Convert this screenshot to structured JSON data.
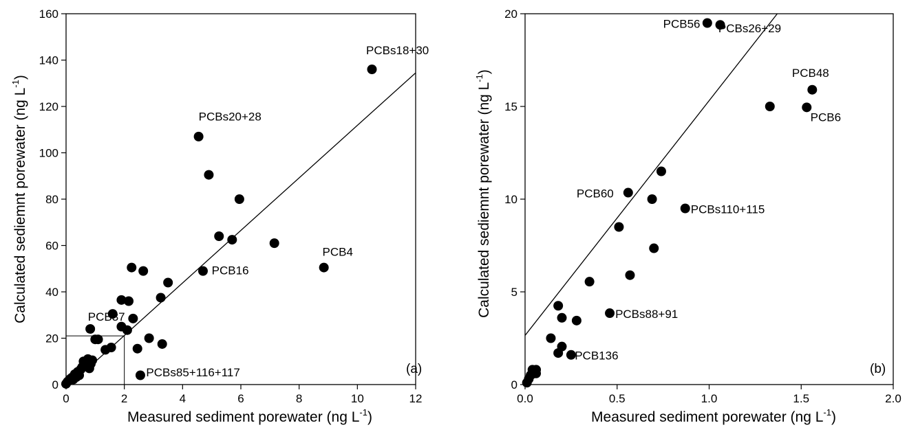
{
  "chart_data": [
    {
      "type": "scatter",
      "panel_label": "(a)",
      "xlabel": "Measured sediment porewater (ng L",
      "ylabel": "Calculated sediemnt porewater (ng L",
      "unit_exponent": "-1",
      "xlim": [
        0,
        12
      ],
      "ylim": [
        0,
        160
      ],
      "xticks": [
        0,
        2,
        4,
        6,
        8,
        10,
        12
      ],
      "yticks": [
        0,
        20,
        40,
        60,
        80,
        100,
        120,
        140,
        160
      ],
      "grid": false,
      "regression_line": [
        [
          0,
          -1.5
        ],
        [
          12,
          134.5
        ]
      ],
      "inset_box": {
        "x": [
          0,
          2
        ],
        "y": [
          0,
          21
        ]
      },
      "points": [
        [
          0.0,
          0.3
        ],
        [
          0.05,
          1.2
        ],
        [
          0.1,
          1.8
        ],
        [
          0.15,
          2.5
        ],
        [
          0.2,
          3.0
        ],
        [
          0.25,
          2.2
        ],
        [
          0.3,
          4.5
        ],
        [
          0.35,
          3.2
        ],
        [
          0.4,
          5.5
        ],
        [
          0.45,
          4.0
        ],
        [
          0.5,
          6.5
        ],
        [
          0.55,
          7.5
        ],
        [
          0.6,
          10.0
        ],
        [
          0.65,
          8.0
        ],
        [
          0.7,
          9.5
        ],
        [
          0.75,
          11.0
        ],
        [
          0.8,
          7.0
        ],
        [
          0.85,
          9.0
        ],
        [
          0.9,
          10.5
        ],
        [
          1.0,
          19.5
        ],
        [
          1.1,
          19.5
        ],
        [
          0.83,
          24.0
        ],
        [
          1.35,
          15.0
        ],
        [
          1.55,
          16.0
        ],
        [
          1.6,
          30.5
        ],
        [
          1.9,
          25.0
        ],
        [
          1.9,
          36.5
        ],
        [
          2.1,
          23.5
        ],
        [
          2.15,
          36.0
        ],
        [
          2.25,
          50.5
        ],
        [
          2.3,
          28.5
        ],
        [
          2.45,
          15.5
        ],
        [
          2.55,
          4.0
        ],
        [
          2.65,
          49.0
        ],
        [
          2.85,
          20.0
        ],
        [
          3.25,
          37.5
        ],
        [
          3.3,
          17.5
        ],
        [
          3.5,
          44.0
        ],
        [
          4.55,
          107.0
        ],
        [
          4.7,
          49.0
        ],
        [
          4.9,
          90.5
        ],
        [
          5.25,
          64.0
        ],
        [
          5.7,
          62.5
        ],
        [
          5.95,
          80.0
        ],
        [
          7.15,
          61.0
        ],
        [
          8.85,
          50.5
        ],
        [
          10.5,
          136.0
        ]
      ],
      "annotations": [
        {
          "text": "PCBs18+30",
          "x": 10.3,
          "y": 142.5
        },
        {
          "text": "PCBs20+28",
          "x": 4.55,
          "y": 114.0
        },
        {
          "text": "PCB16",
          "x": 5.0,
          "y": 47.5
        },
        {
          "text": "PCB4",
          "x": 8.8,
          "y": 55.5
        },
        {
          "text": "PCB37",
          "x": 0.75,
          "y": 27.5
        },
        {
          "text": "PCBs85+116+117",
          "x": 2.75,
          "y": 3.5
        }
      ]
    },
    {
      "type": "scatter",
      "panel_label": "(b)",
      "xlabel": "Measured sediment porewater (ng L",
      "ylabel": "Calculated sediemnt porewater (ng L",
      "unit_exponent": "-1",
      "xlim": [
        0,
        2.0
      ],
      "ylim": [
        0,
        20
      ],
      "xticks": [
        "0.0",
        "0.5",
        "1.0",
        "1.5",
        "2.0"
      ],
      "yticks": [
        0,
        5,
        10,
        15,
        20
      ],
      "grid": false,
      "regression_line": [
        [
          0,
          2.65
        ],
        [
          1.37,
          20.0
        ]
      ],
      "points": [
        [
          0.01,
          0.1
        ],
        [
          0.02,
          0.3
        ],
        [
          0.03,
          0.5
        ],
        [
          0.04,
          0.8
        ],
        [
          0.05,
          0.6
        ],
        [
          0.06,
          0.8
        ],
        [
          0.06,
          0.6
        ],
        [
          0.14,
          2.5
        ],
        [
          0.18,
          1.7
        ],
        [
          0.18,
          4.25
        ],
        [
          0.2,
          2.05
        ],
        [
          0.2,
          3.6
        ],
        [
          0.25,
          1.6
        ],
        [
          0.28,
          3.45
        ],
        [
          0.35,
          5.55
        ],
        [
          0.46,
          3.85
        ],
        [
          0.51,
          8.5
        ],
        [
          0.56,
          10.35
        ],
        [
          0.57,
          5.9
        ],
        [
          0.69,
          10.0
        ],
        [
          0.7,
          7.35
        ],
        [
          0.74,
          11.5
        ],
        [
          0.87,
          9.5
        ],
        [
          0.99,
          19.5
        ],
        [
          1.06,
          19.4
        ],
        [
          1.33,
          15.0
        ],
        [
          1.53,
          14.95
        ],
        [
          1.56,
          15.9
        ]
      ],
      "annotations": [
        {
          "text": "PCB56",
          "x": 0.75,
          "y": 19.25
        },
        {
          "text": "PCBs26+29",
          "x": 1.05,
          "y": 19.0
        },
        {
          "text": "PCB48",
          "x": 1.45,
          "y": 16.6
        },
        {
          "text": "PCB6",
          "x": 1.55,
          "y": 14.2
        },
        {
          "text": "PCB60",
          "x": 0.28,
          "y": 10.1
        },
        {
          "text": "PCBs110+115",
          "x": 0.9,
          "y": 9.25
        },
        {
          "text": "PCBs88+91",
          "x": 0.49,
          "y": 3.6
        },
        {
          "text": "PCB136",
          "x": 0.27,
          "y": 1.35
        }
      ]
    }
  ]
}
